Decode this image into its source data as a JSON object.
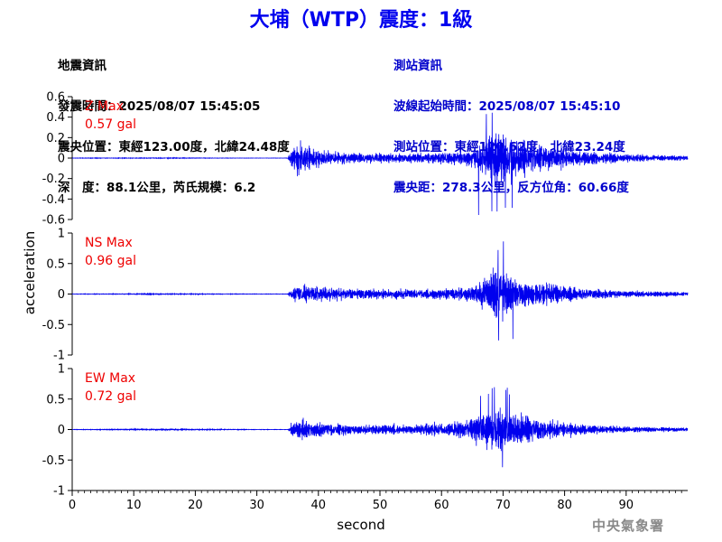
{
  "title": "大埔（WTP）震度：1級",
  "quake_info": {
    "heading": "地震資訊",
    "origin_time": "發震時間：2025/08/07 15:45:05",
    "epicenter": "震央位置：東經123.00度，北緯24.48度",
    "depth_magnitude": "深　度：88.1公里，芮氏規模：6.2"
  },
  "station_info": {
    "heading": "測站資訊",
    "arrival_time": "波線起始時間：2025/08/07 15:45:10",
    "station_location": "測站位置：東經120.62度，北緯23.24度",
    "distance_azimuth": "震央距：278.3公里，反方位角：60.66度"
  },
  "agency": "中央氣象署",
  "chart_data": {
    "type": "line",
    "xlabel": "second",
    "ylabel": "acceleration",
    "xlim": [
      0,
      100
    ],
    "x_ticks": [
      0,
      10,
      20,
      30,
      40,
      50,
      60,
      70,
      80,
      90
    ],
    "line_color": "#0000ee",
    "label_color": "#ee0000",
    "panels": [
      {
        "name": "Z",
        "label": "Z Max",
        "max_text": "0.57 gal",
        "ylim": [
          -0.6,
          0.6
        ],
        "y_ticks": [
          0.6,
          0.4,
          0.2,
          0,
          -0.2,
          -0.4,
          -0.6
        ],
        "pga": 0.57,
        "envelope": [
          [
            0,
            0.003
          ],
          [
            5,
            0.004
          ],
          [
            10,
            0.004
          ],
          [
            15,
            0.006
          ],
          [
            20,
            0.004
          ],
          [
            25,
            0.003
          ],
          [
            30,
            0.002
          ],
          [
            35,
            0.002
          ],
          [
            36,
            0.25
          ],
          [
            37,
            0.3
          ],
          [
            38,
            0.2
          ],
          [
            40,
            0.14
          ],
          [
            45,
            0.09
          ],
          [
            50,
            0.08
          ],
          [
            55,
            0.08
          ],
          [
            60,
            0.1
          ],
          [
            64,
            0.14
          ],
          [
            66,
            0.2
          ],
          [
            68,
            0.4
          ],
          [
            69,
            0.5
          ],
          [
            70,
            0.45
          ],
          [
            72,
            0.36
          ],
          [
            75,
            0.25
          ],
          [
            78,
            0.2
          ],
          [
            82,
            0.13
          ],
          [
            86,
            0.1
          ],
          [
            90,
            0.07
          ],
          [
            95,
            0.05
          ],
          [
            100,
            0.04
          ]
        ]
      },
      {
        "name": "NS",
        "label": "NS Max",
        "max_text": "0.96 gal",
        "ylim": [
          -1,
          1
        ],
        "y_ticks": [
          1,
          0.5,
          0,
          -0.5,
          -1
        ],
        "pga": 0.96,
        "envelope": [
          [
            0,
            0.005
          ],
          [
            5,
            0.008
          ],
          [
            10,
            0.01
          ],
          [
            15,
            0.012
          ],
          [
            20,
            0.01
          ],
          [
            25,
            0.008
          ],
          [
            30,
            0.006
          ],
          [
            35,
            0.005
          ],
          [
            36,
            0.2
          ],
          [
            38,
            0.3
          ],
          [
            40,
            0.22
          ],
          [
            45,
            0.15
          ],
          [
            50,
            0.14
          ],
          [
            55,
            0.14
          ],
          [
            60,
            0.15
          ],
          [
            64,
            0.2
          ],
          [
            66,
            0.35
          ],
          [
            68,
            0.6
          ],
          [
            69,
            0.8
          ],
          [
            70,
            0.65
          ],
          [
            72,
            0.45
          ],
          [
            75,
            0.35
          ],
          [
            78,
            0.28
          ],
          [
            82,
            0.18
          ],
          [
            86,
            0.13
          ],
          [
            90,
            0.1
          ],
          [
            95,
            0.07
          ],
          [
            100,
            0.06
          ]
        ]
      },
      {
        "name": "EW",
        "label": "EW Max",
        "max_text": "0.72 gal",
        "ylim": [
          -1,
          1
        ],
        "y_ticks": [
          1,
          0.5,
          0,
          -0.5,
          -1
        ],
        "pga": 0.72,
        "envelope": [
          [
            0,
            0.005
          ],
          [
            5,
            0.01
          ],
          [
            10,
            0.015
          ],
          [
            15,
            0.02
          ],
          [
            20,
            0.015
          ],
          [
            25,
            0.01
          ],
          [
            30,
            0.006
          ],
          [
            35,
            0.005
          ],
          [
            36,
            0.25
          ],
          [
            37,
            0.3
          ],
          [
            39,
            0.25
          ],
          [
            42,
            0.18
          ],
          [
            45,
            0.15
          ],
          [
            50,
            0.14
          ],
          [
            55,
            0.13
          ],
          [
            60,
            0.18
          ],
          [
            64,
            0.25
          ],
          [
            66,
            0.4
          ],
          [
            68,
            0.55
          ],
          [
            69,
            0.65
          ],
          [
            70,
            0.6
          ],
          [
            72,
            0.45
          ],
          [
            75,
            0.35
          ],
          [
            78,
            0.25
          ],
          [
            82,
            0.17
          ],
          [
            86,
            0.12
          ],
          [
            90,
            0.09
          ],
          [
            95,
            0.07
          ],
          [
            100,
            0.05
          ]
        ]
      }
    ]
  }
}
